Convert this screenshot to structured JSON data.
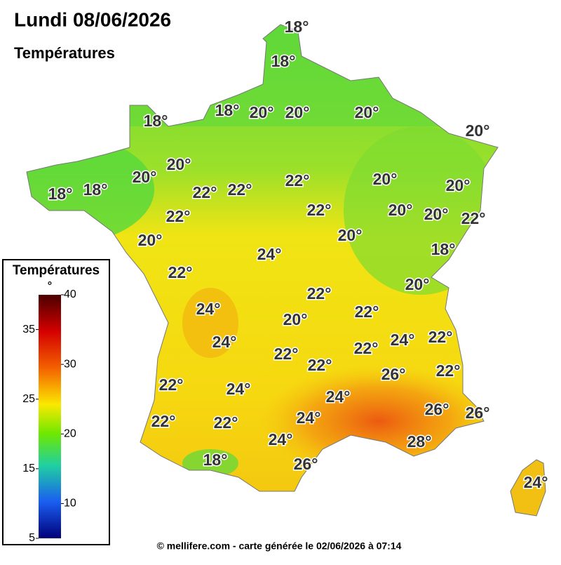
{
  "header": {
    "title": "Lundi 08/06/2026",
    "subtitle": "Températures"
  },
  "labels": [
    "18°",
    "18°",
    "18°",
    "18°",
    "20°",
    "20°",
    "20°",
    "20°",
    "20°",
    "20°",
    "18°",
    "18°",
    "22°",
    "22°",
    "22°",
    "20°",
    "20°",
    "22°",
    "20°",
    "20°",
    "22°",
    "22°",
    "20°",
    "20°",
    "18°",
    "24°",
    "22°",
    "20°",
    "22°",
    "24°",
    "22°",
    "20°",
    "24°",
    "24°",
    "22°",
    "22°",
    "22°",
    "22°",
    "26°",
    "22°",
    "22°",
    "24°",
    "24°",
    "22°",
    "22°",
    "24°",
    "26°",
    "26°",
    "24°",
    "28°",
    "18°",
    "26°",
    "24°"
  ],
  "legend": {
    "title": "Températures",
    "unit": "°",
    "range": [
      5,
      40
    ],
    "ticks": [
      40,
      35,
      30,
      25,
      20,
      15,
      10,
      5
    ]
  },
  "footer": "© mellifere.com - carte générée le 02/06/2026 à 07:14"
}
